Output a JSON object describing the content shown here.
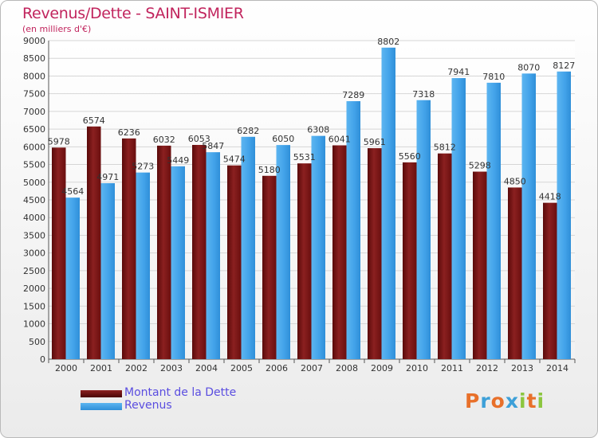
{
  "chart_data": {
    "type": "bar",
    "title": "Revenus/Dette - SAINT-ISMIER",
    "subtitle": "(en milliers d'€)",
    "categories": [
      "2000",
      "2001",
      "2002",
      "2003",
      "2004",
      "2005",
      "2006",
      "2007",
      "2008",
      "2009",
      "2010",
      "2011",
      "2012",
      "2013",
      "2014"
    ],
    "series": [
      {
        "name": "Montant de la Dette",
        "color": "#7a1414",
        "values": [
          5978,
          6574,
          6236,
          6032,
          6053,
          5474,
          5180,
          5531,
          6041,
          5961,
          5560,
          5812,
          5298,
          4850,
          4418
        ],
        "labels": [
          "5978",
          "6574",
          "6236",
          "6032",
          "6053",
          "5474",
          "5180",
          "5531",
          "6041",
          "5961",
          "5560",
          "5812",
          "5298",
          "4850",
          "4418"
        ]
      },
      {
        "name": "Revenus",
        "color": "#3f9fe6",
        "values": [
          4564,
          4971,
          5273,
          5449,
          5847,
          6282,
          6050,
          6308,
          7289,
          8802,
          7318,
          7941,
          7810,
          8070,
          8127
        ],
        "labels": [
          "4564",
          "4971",
          "5273",
          "5449",
          "5847",
          "6282",
          "6050",
          "6308",
          "7289",
          "8802",
          "7318",
          "7941",
          "7810",
          "8070",
          "8127"
        ]
      }
    ],
    "ylim": [
      0,
      9000
    ],
    "yticks": [
      0,
      500,
      1000,
      1500,
      2000,
      2500,
      3000,
      3500,
      4000,
      4500,
      5000,
      5500,
      6000,
      6500,
      7000,
      7500,
      8000,
      8500,
      9000
    ],
    "grid": true,
    "legend_position": "bottom-left"
  },
  "logo": {
    "text": "Proxiti",
    "letters": [
      "P",
      "r",
      "o",
      "x",
      "i",
      "t",
      "i"
    ],
    "colors": [
      "#e8702a",
      "#3da0d8",
      "#e8702a",
      "#3da0d8",
      "#8cc63f",
      "#e8702a",
      "#8cc63f"
    ]
  }
}
